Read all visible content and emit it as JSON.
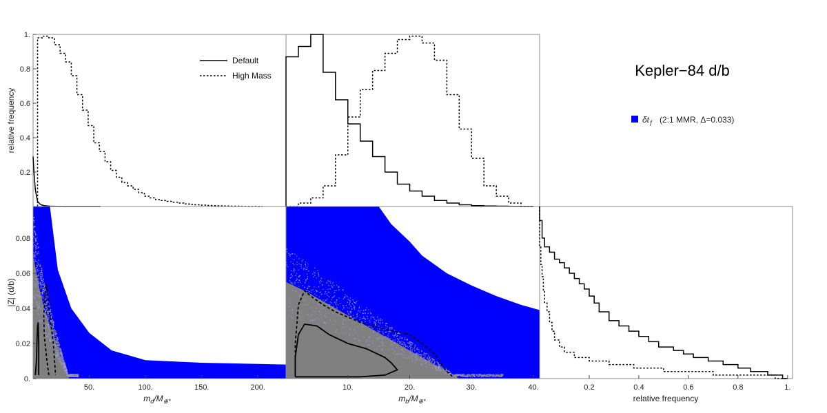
{
  "title": "Kepler−84 d/b",
  "legend_side": {
    "symbol": "δt",
    "symbol_sub": "ƒ",
    "label": "(2:1 MMR, Δ=0.033)",
    "color": "#0000ff"
  },
  "legend_hist": [
    {
      "label": "Default",
      "style": "solid"
    },
    {
      "label": "High Mass",
      "style": "dashed"
    }
  ],
  "colors": {
    "scatter": "#0000ff",
    "density": "#808080",
    "line": "#000000"
  },
  "chart_data": [
    {
      "id": "hist_md",
      "type": "line",
      "xlabel_base": "m",
      "xlabel_sub": "d",
      "xlabel_suffix": "/M",
      "xlabel_sub2": "⊕*",
      "ylabel": "relative frequency",
      "xlim": [
        0,
        225
      ],
      "ylim": [
        0,
        1.0
      ],
      "yticks": [
        0.2,
        0.4,
        0.6,
        0.8,
        1
      ],
      "ytick_labels": [
        "0.2",
        "0.4",
        "0.6",
        "0.8",
        "1."
      ],
      "series": [
        {
          "name": "Default",
          "style": "solid",
          "x": [
            0,
            1,
            2,
            3,
            4,
            6,
            8,
            10,
            15,
            20,
            30,
            60
          ],
          "y": [
            0.29,
            0.18,
            0.1,
            0.06,
            0.03,
            0.015,
            0.008,
            0.005,
            0.002,
            0.001,
            0.0,
            0.0
          ]
        },
        {
          "name": "High Mass",
          "style": "dashed",
          "step": true,
          "x": [
            4,
            9,
            14,
            19,
            24,
            29,
            34,
            39,
            44,
            49,
            54,
            59,
            64,
            69,
            74,
            79,
            84,
            89,
            94,
            99,
            104,
            109,
            114,
            119,
            124,
            129,
            134,
            139,
            144,
            149,
            154,
            159,
            164,
            169,
            174,
            179,
            184,
            189,
            194,
            199
          ],
          "y": [
            0.98,
            0.99,
            0.98,
            0.94,
            0.89,
            0.84,
            0.76,
            0.65,
            0.56,
            0.47,
            0.37,
            0.32,
            0.26,
            0.21,
            0.17,
            0.14,
            0.12,
            0.1,
            0.08,
            0.06,
            0.05,
            0.04,
            0.035,
            0.03,
            0.025,
            0.02,
            0.015,
            0.012,
            0.01,
            0.008,
            0.006,
            0.005,
            0.004,
            0.003,
            0.002,
            0.002,
            0.001,
            0.001,
            0.001,
            0.0
          ]
        }
      ]
    },
    {
      "id": "hist_mb",
      "type": "line",
      "xlim": [
        0,
        41
      ],
      "ylim": [
        0,
        1.0
      ],
      "series": [
        {
          "name": "Default",
          "style": "solid",
          "step": true,
          "x": [
            0,
            2,
            4,
            6,
            8,
            10,
            12,
            14,
            16,
            18,
            20,
            22,
            24,
            26,
            28,
            30,
            32,
            34,
            36,
            38
          ],
          "y": [
            0.87,
            0.93,
            1.0,
            0.78,
            0.62,
            0.48,
            0.38,
            0.29,
            0.2,
            0.13,
            0.09,
            0.06,
            0.035,
            0.02,
            0.01,
            0.005,
            0.003,
            0.002,
            0.001,
            0.0
          ]
        },
        {
          "name": "High Mass",
          "style": "dashed",
          "step": true,
          "x": [
            0,
            2,
            4,
            6,
            8,
            10,
            12,
            14,
            16,
            18,
            20,
            22,
            24,
            26,
            28,
            30,
            32,
            34,
            36,
            38
          ],
          "y": [
            0.0,
            0.02,
            0.05,
            0.12,
            0.3,
            0.52,
            0.68,
            0.79,
            0.89,
            0.97,
            0.99,
            0.95,
            0.85,
            0.65,
            0.45,
            0.28,
            0.12,
            0.06,
            0.02,
            0.0
          ]
        }
      ]
    },
    {
      "id": "scatter_md",
      "type": "scatter",
      "xlabel_base": "m",
      "xlabel_sub": "d",
      "xlabel_suffix": "/M",
      "xlabel_sub2": "⊕*",
      "ylabel": "|Z| (d/b)",
      "xlim": [
        0,
        225
      ],
      "ylim": [
        0,
        0.098
      ],
      "xticks": [
        50,
        100,
        150,
        200
      ],
      "xtick_labels": [
        "50.",
        "100.",
        "150.",
        "200."
      ],
      "yticks": [
        0,
        0.02,
        0.04,
        0.06,
        0.08
      ],
      "ytick_labels": [
        "0.",
        "0.02",
        "0.04",
        "0.06",
        "0.08"
      ],
      "envelope": {
        "x": [
          0,
          15,
          22,
          34,
          50,
          70,
          100,
          150,
          225
        ],
        "y": [
          0.098,
          0.098,
          0.062,
          0.04,
          0.026,
          0.016,
          0.0105,
          0.009,
          0.008
        ]
      },
      "density_edge": {
        "x": [
          0,
          3,
          6,
          10,
          15,
          20,
          26,
          32
        ],
        "y": [
          0.07,
          0.06,
          0.05,
          0.04,
          0.03,
          0.02,
          0.01,
          0.0
        ]
      },
      "contours": [
        {
          "name": "Default",
          "style": "solid",
          "x": [
            2,
            3,
            3.5,
            4,
            4.5,
            5,
            5
          ],
          "y": [
            0.002,
            0.01,
            0.022,
            0.03,
            0.032,
            0.02,
            0.002
          ]
        },
        {
          "name": "High Mass",
          "style": "dashed",
          "x": [
            14,
            12,
            10,
            9.5,
            10.5,
            12,
            14,
            18,
            20
          ],
          "y": [
            0.002,
            0.012,
            0.024,
            0.036,
            0.046,
            0.054,
            0.04,
            0.02,
            0.002
          ]
        }
      ]
    },
    {
      "id": "scatter_mb",
      "type": "scatter",
      "xlabel_base": "m",
      "xlabel_sub": "b",
      "xlabel_suffix": "/M",
      "xlabel_sub2": "⊕*",
      "xlim": [
        0,
        41
      ],
      "ylim": [
        0,
        0.098
      ],
      "xticks": [
        10,
        20,
        30,
        40
      ],
      "xtick_labels": [
        "10.",
        "20.",
        "30.",
        "40."
      ],
      "envelope": {
        "x": [
          0,
          15,
          17,
          20,
          22,
          26,
          30,
          34,
          38,
          41
        ],
        "y": [
          0.098,
          0.098,
          0.088,
          0.078,
          0.07,
          0.06,
          0.053,
          0.047,
          0.042,
          0.039
        ]
      },
      "density_edge": {
        "x": [
          0,
          3,
          6,
          10,
          14,
          18,
          22,
          26,
          28
        ],
        "y": [
          0.055,
          0.05,
          0.044,
          0.036,
          0.028,
          0.02,
          0.012,
          0.004,
          0.0
        ]
      },
      "contours": [
        {
          "name": "Default",
          "style": "solid",
          "x": [
            1.5,
            1.5,
            2,
            3,
            5,
            7,
            10,
            13,
            16,
            17,
            18,
            16,
            12,
            8,
            4,
            1.5
          ],
          "y": [
            0.001,
            0.012,
            0.025,
            0.031,
            0.03,
            0.025,
            0.02,
            0.017,
            0.012,
            0.009,
            0.005,
            0.002,
            0.001,
            0.001,
            0.001,
            0.001
          ]
        },
        {
          "name": "High Mass",
          "style": "dashed",
          "x": [
            1.5,
            1.5,
            2,
            3,
            4,
            6,
            8,
            12,
            16,
            20,
            22,
            24,
            25,
            26,
            27
          ],
          "y": [
            0.001,
            0.02,
            0.042,
            0.05,
            0.047,
            0.042,
            0.038,
            0.032,
            0.028,
            0.025,
            0.02,
            0.014,
            0.009,
            0.004,
            0.001
          ]
        }
      ]
    },
    {
      "id": "hist_z",
      "type": "line",
      "xlabel": "relative frequency",
      "xlim": [
        0,
        1.02
      ],
      "ylim": [
        0,
        0.098
      ],
      "xticks": [
        0.2,
        0.4,
        0.6,
        0.8,
        1
      ],
      "xtick_labels": [
        "0.2",
        "0.4",
        "0.6",
        "0.8",
        "1."
      ],
      "series": [
        {
          "name": "Default",
          "style": "solid",
          "y": [
            0.098,
            0.09,
            0.08,
            0.075,
            0.072,
            0.068,
            0.066,
            0.063,
            0.06,
            0.057,
            0.054,
            0.051,
            0.047,
            0.043,
            0.038,
            0.033,
            0.03,
            0.027,
            0.024,
            0.021,
            0.018,
            0.016,
            0.014,
            0.012,
            0.01,
            0.008,
            0.006,
            0.004,
            0.002,
            0.0
          ],
          "x": [
            0.0,
            0.01,
            0.02,
            0.04,
            0.06,
            0.08,
            0.1,
            0.12,
            0.14,
            0.16,
            0.18,
            0.2,
            0.22,
            0.24,
            0.28,
            0.32,
            0.36,
            0.4,
            0.44,
            0.48,
            0.54,
            0.58,
            0.62,
            0.68,
            0.74,
            0.8,
            0.85,
            0.92,
            0.98,
            1.0
          ]
        },
        {
          "name": "High Mass",
          "style": "dashed",
          "y": [
            0.098,
            0.085,
            0.075,
            0.065,
            0.058,
            0.05,
            0.043,
            0.038,
            0.032,
            0.027,
            0.022,
            0.018,
            0.015,
            0.012,
            0.01,
            0.008,
            0.006,
            0.004,
            0.002,
            0.0
          ],
          "x": [
            0.0,
            0.0,
            0.005,
            0.01,
            0.015,
            0.02,
            0.03,
            0.04,
            0.05,
            0.06,
            0.08,
            0.1,
            0.14,
            0.2,
            0.28,
            0.38,
            0.5,
            0.7,
            0.95,
            1.0
          ]
        }
      ]
    }
  ]
}
